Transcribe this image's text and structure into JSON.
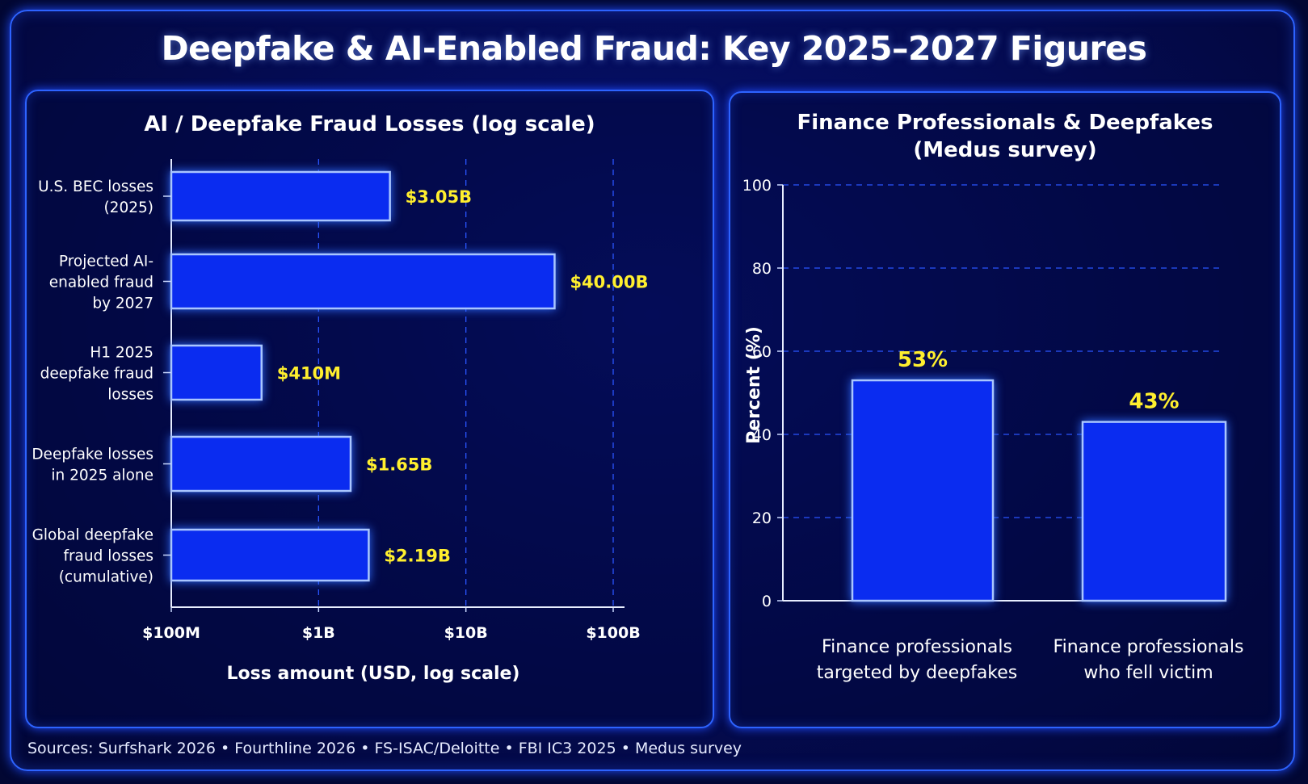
{
  "title": "Deepfake & AI-Enabled Fraud: Key 2025–2027 Figures",
  "sources": "Sources: Surfshark 2026 • Fourthline 2026 • FS-ISAC/Deloitte • FBI IC3 2025 • Medus survey",
  "colors": {
    "background": "#020733",
    "panel_border": "#2d63ff",
    "bar_fill": "#0a2cf0",
    "bar_stroke": "#a9c6ff",
    "value_label": "#ffef2e",
    "text": "#ffffff"
  },
  "chart_data": [
    {
      "type": "bar",
      "orientation": "horizontal",
      "title": "AI / Deepfake Fraud Losses (log scale)",
      "xlabel": "Loss amount (USD, log scale)",
      "ylabel": "",
      "xscale": "log",
      "xlim": [
        100000000,
        150000000000
      ],
      "xticks": [
        {
          "value": 100000000,
          "label": "$100M"
        },
        {
          "value": 1000000000,
          "label": "$1B"
        },
        {
          "value": 10000000000,
          "label": "$10B"
        },
        {
          "value": 100000000000,
          "label": "$100B"
        }
      ],
      "grid": "vertical dashed at major ticks",
      "categories": [
        [
          "U.S. BEC losses",
          "(2025)"
        ],
        [
          "Projected AI-",
          "enabled fraud",
          "by 2027"
        ],
        [
          "H1 2025",
          "deepfake fraud",
          "losses"
        ],
        [
          "Deepfake losses",
          "in 2025 alone"
        ],
        [
          "Global deepfake",
          "fraud losses",
          "(cumulative)"
        ]
      ],
      "values": [
        3050000000,
        40000000000,
        410000000,
        1650000000,
        2190000000
      ],
      "data_labels": [
        "$3.05B",
        "$40.00B",
        "$410M",
        "$1.65B",
        "$2.19B"
      ]
    },
    {
      "type": "bar",
      "orientation": "vertical",
      "title": "Finance Professionals & Deepfakes",
      "subtitle": "(Medus survey)",
      "xlabel": "",
      "ylabel": "Percent (%)",
      "ylim": [
        0,
        100
      ],
      "yticks": [
        0,
        20,
        40,
        60,
        80,
        100
      ],
      "grid": "horizontal dashed at major ticks",
      "categories": [
        [
          "Finance professionals",
          "targeted by deepfakes"
        ],
        [
          "Finance professionals",
          "who fell victim"
        ]
      ],
      "values": [
        53,
        43
      ],
      "data_labels": [
        "53%",
        "43%"
      ]
    }
  ]
}
